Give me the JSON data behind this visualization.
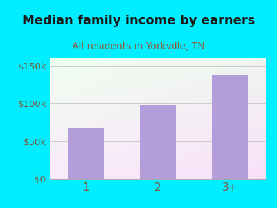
{
  "title": "Median family income by earners",
  "subtitle": "All residents in Yorkville, TN",
  "categories": [
    "1",
    "2",
    "3+"
  ],
  "values": [
    68000,
    98000,
    138000
  ],
  "bar_color": "#b39ddb",
  "background_color": "#00eeff",
  "plot_bg_color_top_left": "#d6edd6",
  "plot_bg_color_right": "#f0f0f8",
  "title_color": "#1a1a1a",
  "subtitle_color": "#8b5e3c",
  "ylabel_ticks": [
    0,
    50000,
    100000,
    150000
  ],
  "ylabel_labels": [
    "$0",
    "$50k",
    "$100k",
    "$150k"
  ],
  "ylim": [
    0,
    160000
  ],
  "title_fontsize": 13,
  "subtitle_fontsize": 10,
  "tick_color": "#7a5c3a",
  "grid_color": "#cccccc"
}
